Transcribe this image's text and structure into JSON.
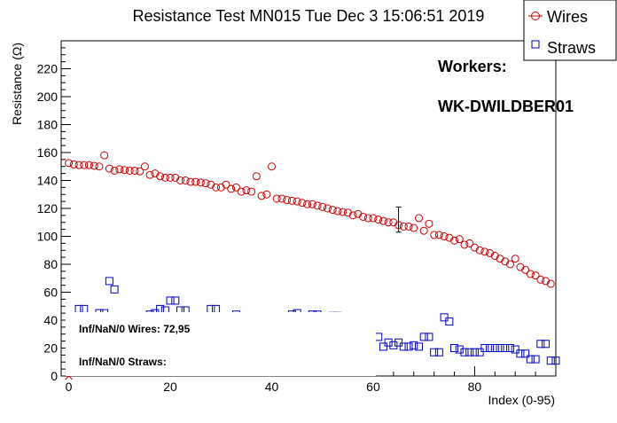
{
  "chart_data": {
    "type": "scatter",
    "title": "Resistance Test MN015 Tue Dec  3 15:06:51 2019",
    "xlabel": "Index (0-95)",
    "ylabel": "Resistance (Ω)",
    "xlim": [
      -1.5,
      96
    ],
    "ylim": [
      0,
      240
    ],
    "xticks": [
      0,
      20,
      40,
      60,
      80
    ],
    "yticks": [
      0,
      20,
      40,
      60,
      80,
      100,
      120,
      140,
      160,
      180,
      200,
      220
    ],
    "grid": false,
    "legend_position": "top-right",
    "series": [
      {
        "name": "Wires",
        "color": "#cc0000",
        "marker": "circle",
        "points": [
          [
            0,
            152.5
          ],
          [
            1,
            151.5
          ],
          [
            2,
            151
          ],
          [
            3,
            151
          ],
          [
            4,
            151
          ],
          [
            5,
            150.5
          ],
          [
            6,
            150
          ],
          [
            7,
            158
          ],
          [
            8,
            148.5
          ],
          [
            9,
            147
          ],
          [
            10,
            148
          ],
          [
            11,
            147.5
          ],
          [
            12,
            147
          ],
          [
            13,
            147
          ],
          [
            14,
            146.5
          ],
          [
            15,
            150
          ],
          [
            16,
            144
          ],
          [
            17,
            145
          ],
          [
            18,
            143
          ],
          [
            19,
            142
          ],
          [
            20,
            142
          ],
          [
            21,
            142
          ],
          [
            22,
            140
          ],
          [
            23,
            140
          ],
          [
            24,
            139
          ],
          [
            25,
            139
          ],
          [
            26,
            138.5
          ],
          [
            27,
            138
          ],
          [
            28,
            137
          ],
          [
            29,
            135
          ],
          [
            30,
            135
          ],
          [
            31,
            137
          ],
          [
            32,
            134
          ],
          [
            33,
            135
          ],
          [
            34,
            132
          ],
          [
            35,
            133
          ],
          [
            36,
            132
          ],
          [
            37,
            143
          ],
          [
            38,
            129
          ],
          [
            39,
            130
          ],
          [
            40,
            150
          ],
          [
            41,
            127
          ],
          [
            42,
            127
          ],
          [
            43,
            126
          ],
          [
            44,
            125.5
          ],
          [
            45,
            125
          ],
          [
            46,
            124
          ],
          [
            47,
            123
          ],
          [
            48,
            123
          ],
          [
            49,
            122
          ],
          [
            50,
            121
          ],
          [
            51,
            120
          ],
          [
            52,
            119
          ],
          [
            53,
            118
          ],
          [
            54,
            117.5
          ],
          [
            55,
            117
          ],
          [
            56,
            115
          ],
          [
            57,
            116
          ],
          [
            58,
            114
          ],
          [
            59,
            113
          ],
          [
            60,
            113
          ],
          [
            61,
            112
          ],
          [
            62,
            111
          ],
          [
            63,
            110
          ],
          [
            64,
            110
          ],
          [
            65,
            108
          ],
          [
            66,
            107
          ],
          [
            67,
            107
          ],
          [
            68,
            106
          ],
          [
            69,
            113
          ],
          [
            70,
            104
          ],
          [
            71,
            109
          ],
          [
            72,
            101
          ],
          [
            73,
            101
          ],
          [
            74,
            100
          ],
          [
            75,
            99
          ],
          [
            76,
            97
          ],
          [
            77,
            98
          ],
          [
            78,
            94
          ],
          [
            79,
            95
          ],
          [
            80,
            92
          ],
          [
            81,
            90
          ],
          [
            82,
            89
          ],
          [
            83,
            88
          ],
          [
            84,
            86
          ],
          [
            85,
            84
          ],
          [
            86,
            82
          ],
          [
            87,
            80
          ],
          [
            88,
            84
          ],
          [
            89,
            78
          ],
          [
            90,
            76
          ],
          [
            91,
            73
          ],
          [
            92,
            72
          ],
          [
            93,
            69
          ],
          [
            94,
            68
          ],
          [
            95,
            66
          ]
        ],
        "error_bars": [
          {
            "x": 65,
            "low": 103,
            "high": 121
          }
        ]
      },
      {
        "name": "Straws",
        "color": "#0000cc",
        "marker": "open-square",
        "points": [
          [
            2,
            48
          ],
          [
            3,
            48
          ],
          [
            6,
            45
          ],
          [
            7,
            45
          ],
          [
            8,
            68
          ],
          [
            9,
            62
          ],
          [
            16,
            44
          ],
          [
            17,
            45
          ],
          [
            18,
            48
          ],
          [
            19,
            47
          ],
          [
            20,
            54
          ],
          [
            21,
            54
          ],
          [
            22,
            47
          ],
          [
            23,
            47
          ],
          [
            28,
            48
          ],
          [
            29,
            48
          ],
          [
            33,
            44
          ],
          [
            44,
            44
          ],
          [
            45,
            45
          ],
          [
            48,
            44
          ],
          [
            49,
            44
          ],
          [
            52,
            43
          ],
          [
            53,
            43
          ],
          [
            61,
            28
          ],
          [
            62,
            21
          ],
          [
            63,
            24
          ],
          [
            64,
            22
          ],
          [
            65,
            24
          ],
          [
            66,
            21
          ],
          [
            67,
            21
          ],
          [
            68,
            22
          ],
          [
            69,
            21
          ],
          [
            70,
            28
          ],
          [
            71,
            28
          ],
          [
            72,
            17
          ],
          [
            73,
            17
          ],
          [
            74,
            42
          ],
          [
            75,
            39
          ],
          [
            76,
            20
          ],
          [
            77,
            19
          ],
          [
            78,
            17
          ],
          [
            79,
            17
          ],
          [
            80,
            17
          ],
          [
            81,
            17
          ],
          [
            82,
            20
          ],
          [
            83,
            20
          ],
          [
            84,
            20
          ],
          [
            85,
            20
          ],
          [
            86,
            20
          ],
          [
            87,
            20
          ],
          [
            88,
            19
          ],
          [
            89,
            16
          ],
          [
            90,
            16
          ],
          [
            91,
            12
          ],
          [
            92,
            12
          ],
          [
            93,
            23
          ],
          [
            94,
            23
          ],
          [
            95,
            11
          ],
          [
            96,
            11
          ]
        ]
      },
      {
        "name": "Inf/NaN/0 Wires",
        "color": "#cc0000",
        "marker": "cross",
        "points": [
          [
            0,
            0
          ]
        ]
      }
    ],
    "annotations": {
      "workers_heading": "Workers:",
      "worker_id": "WK-DWILDBER01",
      "nan_wires": "Inf/NaN/0 Wires: 72,95",
      "nan_straws": "Inf/NaN/0 Straws:"
    }
  }
}
